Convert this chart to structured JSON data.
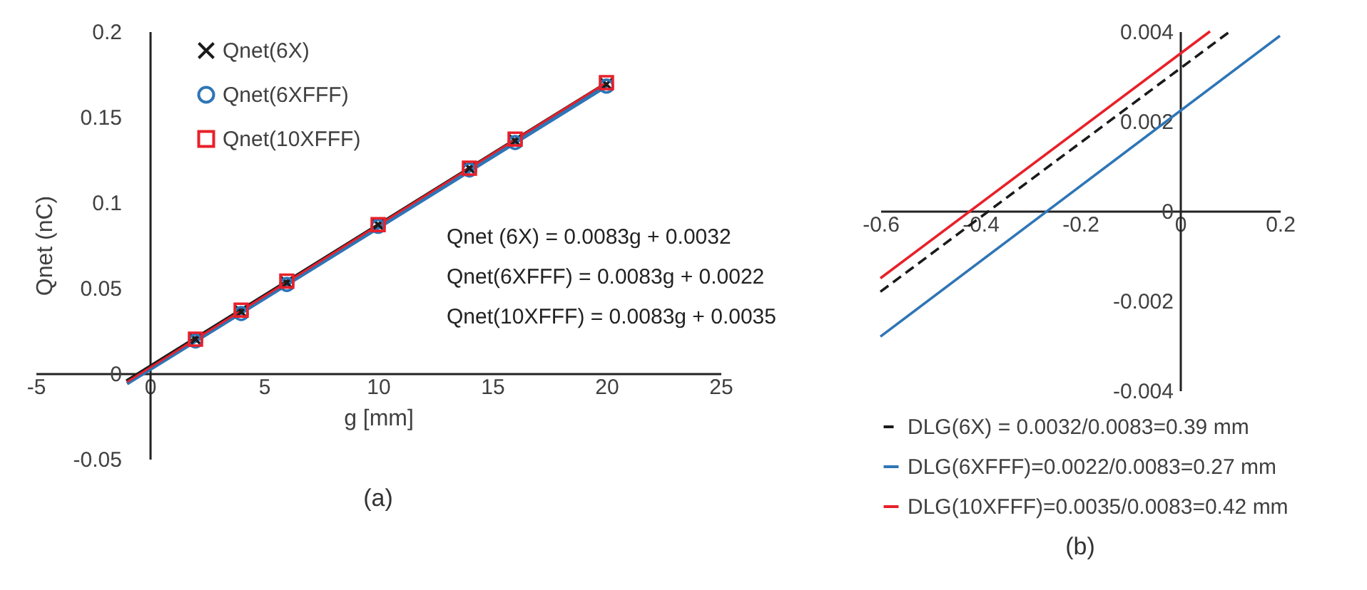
{
  "chart_data": [
    {
      "type": "scatter",
      "xlabel": "g [mm]",
      "ylabel": "Qnet (nC)",
      "xlim": [
        -5,
        25
      ],
      "ylim": [
        -0.05,
        0.2
      ],
      "xticks": [
        -5,
        0,
        5,
        10,
        15,
        20,
        25
      ],
      "yticks": [
        -0.05,
        0,
        0.05,
        0.1,
        0.15,
        0.2
      ],
      "legend": "top left",
      "grid": false,
      "x": [
        2,
        4,
        6,
        10,
        14,
        16,
        20
      ],
      "series": [
        {
          "name": "Qnet(6X)",
          "marker": "cross",
          "color": "#1a1a1a",
          "values": [
            0.02,
            0.036,
            0.053,
            0.087,
            0.12,
            0.136,
            0.169
          ]
        },
        {
          "name": "Qnet(6XFFF)",
          "marker": "circle",
          "color": "#2e75b6",
          "values": [
            0.019,
            0.035,
            0.052,
            0.086,
            0.119,
            0.135,
            0.168
          ]
        },
        {
          "name": "Qnet(10XFFF)",
          "marker": "square",
          "color": "#e8202a",
          "values": [
            0.02,
            0.037,
            0.054,
            0.087,
            0.12,
            0.137,
            0.17
          ]
        },
        {
          "type": "line",
          "color": "#1a1a1a",
          "x": [
            -1,
            20
          ],
          "values": [
            -0.005,
            0.169
          ]
        },
        {
          "type": "line",
          "color": "#2e75b6",
          "x": [
            -1,
            20
          ],
          "values": [
            -0.006,
            0.168
          ]
        },
        {
          "type": "line",
          "color": "#e8202a",
          "x": [
            -1,
            20
          ],
          "values": [
            -0.005,
            0.17
          ]
        }
      ],
      "title": "(a)",
      "annotations": [
        "Qnet (6X) = 0.0083g + 0.0032",
        "Qnet(6XFFF) = 0.0083g + 0.0022",
        "Qnet(10XFFF) = 0.0083g + 0.0035"
      ]
    },
    {
      "type": "line",
      "xlim": [
        -0.6,
        0.2
      ],
      "ylim": [
        -0.004,
        0.004
      ],
      "xticks": [
        -0.6,
        -0.4,
        -0.2,
        0,
        0.2
      ],
      "yticks": [
        -0.004,
        -0.002,
        0,
        0.002,
        0.004
      ],
      "legend": "bottom",
      "grid": false,
      "series": [
        {
          "name": "DLG(6X) = 0.0032/0.0083=0.39 mm",
          "color": "#1a1a1a",
          "line_style": "dashed",
          "x": [
            -0.6,
            0.1
          ],
          "values": [
            -0.0018,
            0.004
          ]
        },
        {
          "name": "DLG(6XFFF)=0.0022/0.0083=0.27 mm",
          "color": "#2e75b6",
          "line_style": "solid",
          "x": [
            -0.6,
            0.2
          ],
          "values": [
            -0.0028,
            0.0039
          ]
        },
        {
          "name": "DLG(10XFFF)=0.0035/0.0083=0.42 mm",
          "color": "#e8202a",
          "line_style": "solid",
          "x": [
            -0.6,
            0.06
          ],
          "values": [
            -0.0015,
            0.004
          ]
        }
      ],
      "title": "(b)"
    }
  ]
}
